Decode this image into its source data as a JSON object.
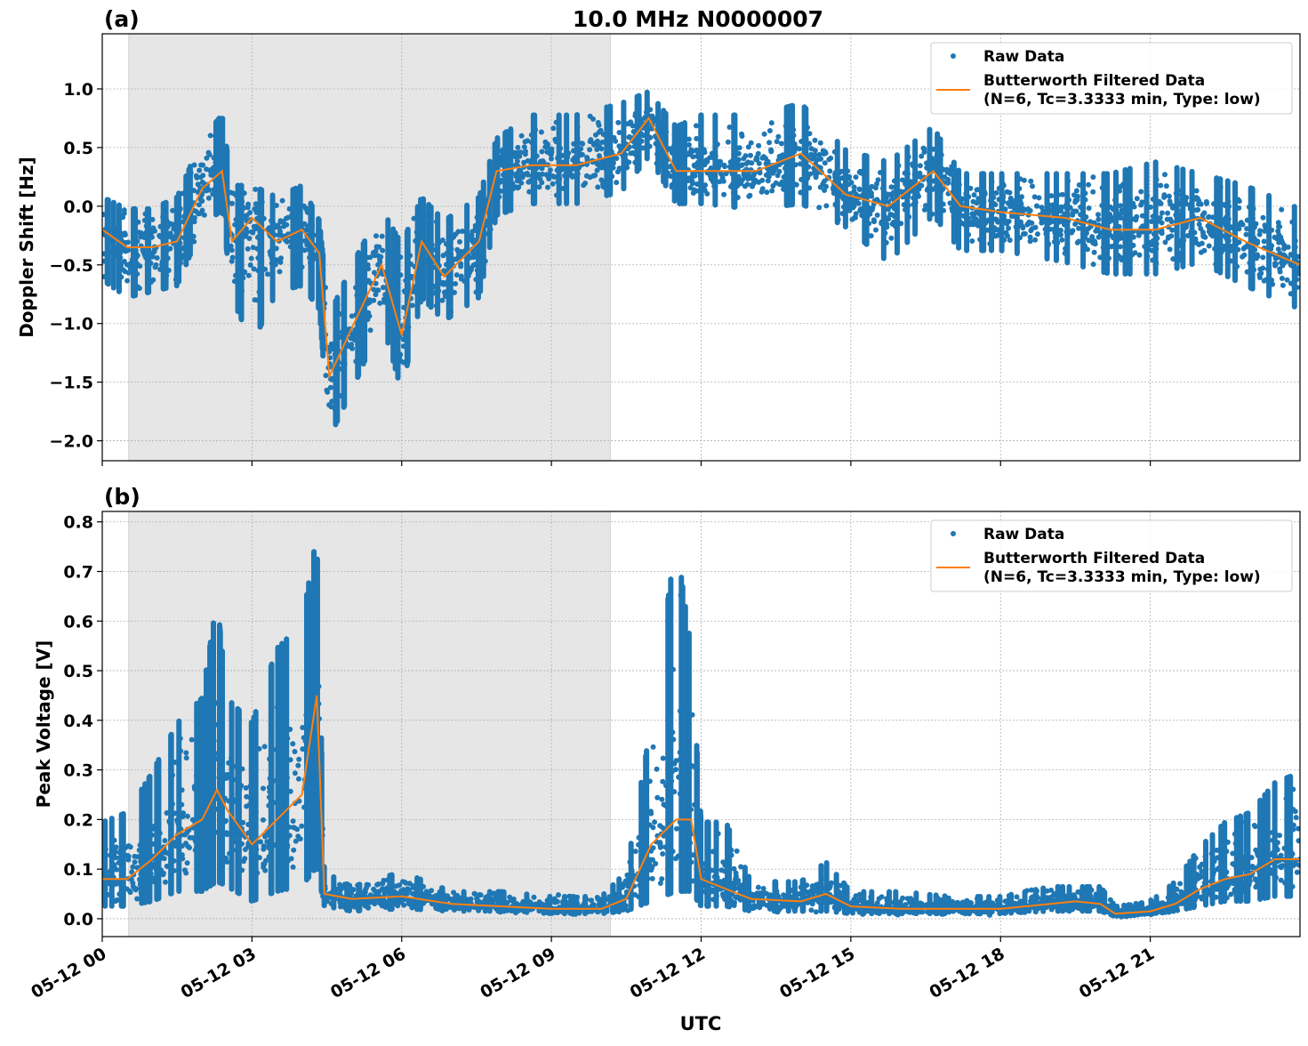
{
  "title": "10.0 MHz N0000007",
  "xlabel": "UTC",
  "x_tick_labels": [
    "05-12 00",
    "05-12 03",
    "05-12 06",
    "05-12 09",
    "05-12 12",
    "05-12 15",
    "05-12 18",
    "05-12 21"
  ],
  "x_ticks_hours": [
    0,
    3,
    6,
    9,
    12,
    15,
    18,
    21
  ],
  "xlim_hours": [
    0,
    24
  ],
  "colors": {
    "raw": "#1f77b4",
    "filtered": "#ff7f0e",
    "shade": "#e6e6e6",
    "grid": "#b0b0b0"
  },
  "legend": {
    "raw": "Raw Data",
    "filtered_line1": "Butterworth Filtered Data",
    "filtered_line2": "(N=6, Tc=3.3333 min, Type: low)",
    "placement": "upper-right"
  },
  "chart_data": [
    {
      "panel_label": "(a)",
      "type": "scatter+line",
      "ylabel": "Doppler Shift [Hz]",
      "ylim": [
        -2.17,
        1.47
      ],
      "y_ticks": [
        1.0,
        0.5,
        0.0,
        -0.5,
        -1.0,
        -1.5,
        -2.0
      ],
      "y_tick_labels": [
        "1.0",
        "0.5",
        "0.0",
        "−0.5",
        "−1.0",
        "−1.5",
        "−2.0"
      ],
      "grid": true,
      "shaded_interval_hours": [
        0.53,
        10.18
      ],
      "columns": [
        "hour",
        "filtered",
        "raw_low",
        "raw_high"
      ],
      "points": [
        [
          0.0,
          -0.2,
          -0.65,
          0.1
        ],
        [
          0.5,
          -0.35,
          -0.8,
          0.0
        ],
        [
          1.0,
          -0.35,
          -0.75,
          0.0
        ],
        [
          1.5,
          -0.3,
          -0.7,
          0.1
        ],
        [
          2.0,
          0.15,
          -0.2,
          0.6
        ],
        [
          2.4,
          0.3,
          -0.05,
          0.8
        ],
        [
          2.6,
          -0.3,
          -0.8,
          0.2
        ],
        [
          3.0,
          -0.1,
          -1.2,
          0.2
        ],
        [
          3.5,
          -0.3,
          -0.75,
          0.1
        ],
        [
          4.0,
          -0.2,
          -0.7,
          0.2
        ],
        [
          4.35,
          -0.4,
          -0.9,
          -0.1
        ],
        [
          4.55,
          -1.45,
          -2.0,
          -0.9
        ],
        [
          5.1,
          -0.95,
          -1.5,
          -0.4
        ],
        [
          5.6,
          -0.5,
          -1.0,
          0.0
        ],
        [
          6.0,
          -1.1,
          -1.6,
          -0.3
        ],
        [
          6.4,
          -0.3,
          -0.8,
          0.1
        ],
        [
          6.85,
          -0.6,
          -1.0,
          -0.1
        ],
        [
          7.55,
          -0.3,
          -0.8,
          0.1
        ],
        [
          7.9,
          0.3,
          -0.1,
          0.6
        ],
        [
          8.6,
          0.35,
          0.0,
          0.8
        ],
        [
          9.5,
          0.35,
          0.0,
          0.8
        ],
        [
          10.4,
          0.45,
          0.1,
          0.9
        ],
        [
          10.95,
          0.75,
          0.4,
          1.0
        ],
        [
          11.5,
          0.3,
          0.0,
          0.7
        ],
        [
          12.0,
          0.3,
          0.0,
          0.8
        ],
        [
          13.1,
          0.3,
          -0.05,
          0.8
        ],
        [
          14.0,
          0.45,
          0.0,
          0.9
        ],
        [
          14.9,
          0.1,
          -0.2,
          0.5
        ],
        [
          15.75,
          0.0,
          -0.5,
          0.4
        ],
        [
          16.65,
          0.3,
          -0.1,
          0.7
        ],
        [
          17.2,
          0.0,
          -0.4,
          0.3
        ],
        [
          18.0,
          -0.05,
          -0.4,
          0.3
        ],
        [
          19.3,
          -0.1,
          -0.5,
          0.3
        ],
        [
          20.2,
          -0.2,
          -0.6,
          0.3
        ],
        [
          21.1,
          -0.2,
          -0.6,
          0.4
        ],
        [
          22.0,
          -0.1,
          -0.5,
          0.3
        ],
        [
          22.9,
          -0.3,
          -0.7,
          0.2
        ],
        [
          24.0,
          -0.5,
          -0.9,
          0.0
        ]
      ]
    },
    {
      "panel_label": "(b)",
      "type": "scatter+line",
      "ylabel": "Peak Voltage [V]",
      "ylim": [
        -0.036,
        0.821
      ],
      "y_ticks": [
        0.8,
        0.7,
        0.6,
        0.5,
        0.4,
        0.3,
        0.2,
        0.1,
        0.0
      ],
      "y_tick_labels": [
        "0.8",
        "0.7",
        "0.6",
        "0.5",
        "0.4",
        "0.3",
        "0.2",
        "0.1",
        "0.0"
      ],
      "grid": true,
      "shaded_interval_hours": [
        0.53,
        10.18
      ],
      "columns": [
        "hour",
        "filtered",
        "raw_low",
        "raw_high"
      ],
      "points": [
        [
          0.0,
          0.08,
          0.02,
          0.2
        ],
        [
          0.5,
          0.08,
          0.02,
          0.22
        ],
        [
          1.0,
          0.12,
          0.03,
          0.3
        ],
        [
          1.5,
          0.17,
          0.05,
          0.4
        ],
        [
          2.0,
          0.2,
          0.05,
          0.45
        ],
        [
          2.3,
          0.26,
          0.07,
          0.65
        ],
        [
          2.5,
          0.22,
          0.06,
          0.45
        ],
        [
          3.0,
          0.15,
          0.03,
          0.4
        ],
        [
          3.5,
          0.2,
          0.05,
          0.55
        ],
        [
          4.0,
          0.25,
          0.06,
          0.6
        ],
        [
          4.3,
          0.45,
          0.1,
          0.78
        ],
        [
          4.45,
          0.05,
          0.02,
          0.1
        ],
        [
          5.0,
          0.04,
          0.01,
          0.07
        ],
        [
          6.0,
          0.045,
          0.015,
          0.1
        ],
        [
          7.0,
          0.03,
          0.01,
          0.06
        ],
        [
          8.0,
          0.025,
          0.01,
          0.06
        ],
        [
          9.0,
          0.02,
          0.005,
          0.05
        ],
        [
          10.0,
          0.02,
          0.005,
          0.05
        ],
        [
          10.5,
          0.04,
          0.01,
          0.1
        ],
        [
          11.0,
          0.15,
          0.03,
          0.4
        ],
        [
          11.5,
          0.2,
          0.05,
          0.77
        ],
        [
          11.8,
          0.2,
          0.05,
          0.55
        ],
        [
          12.0,
          0.08,
          0.02,
          0.2
        ],
        [
          12.5,
          0.06,
          0.02,
          0.2
        ],
        [
          13.0,
          0.04,
          0.01,
          0.08
        ],
        [
          14.0,
          0.035,
          0.01,
          0.08
        ],
        [
          14.5,
          0.05,
          0.01,
          0.12
        ],
        [
          15.0,
          0.025,
          0.005,
          0.06
        ],
        [
          16.0,
          0.02,
          0.005,
          0.06
        ],
        [
          17.0,
          0.02,
          0.005,
          0.05
        ],
        [
          18.0,
          0.02,
          0.005,
          0.05
        ],
        [
          19.0,
          0.03,
          0.01,
          0.07
        ],
        [
          19.5,
          0.035,
          0.01,
          0.07
        ],
        [
          20.0,
          0.03,
          0.01,
          0.07
        ],
        [
          20.3,
          0.01,
          0.0,
          0.03
        ],
        [
          21.0,
          0.015,
          0.005,
          0.04
        ],
        [
          21.5,
          0.03,
          0.01,
          0.08
        ],
        [
          22.0,
          0.06,
          0.02,
          0.15
        ],
        [
          22.5,
          0.08,
          0.03,
          0.2
        ],
        [
          23.0,
          0.09,
          0.03,
          0.22
        ],
        [
          23.5,
          0.12,
          0.04,
          0.28
        ],
        [
          24.0,
          0.12,
          0.04,
          0.3
        ]
      ]
    }
  ]
}
